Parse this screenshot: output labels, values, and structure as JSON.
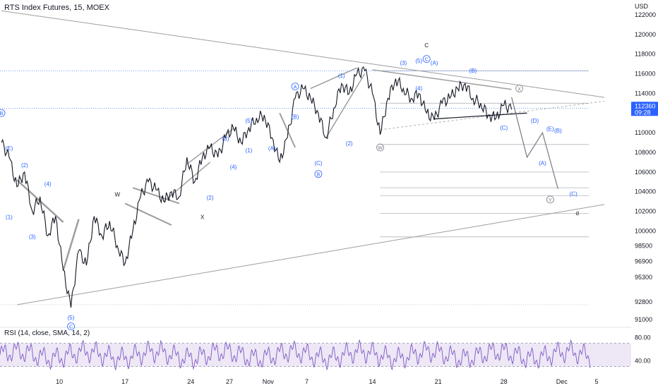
{
  "chart_data": {
    "type": "line",
    "title": "RTS Index Futures, 15, MOEX",
    "currency": "USD",
    "y_ticks": [
      91000,
      92800,
      95300,
      96900,
      98500,
      100000,
      102000,
      104000,
      106000,
      108000,
      110000,
      112000,
      114000,
      116000,
      118000,
      120000,
      122000
    ],
    "y_tick_labels": [
      "91000",
      "92800",
      "95300",
      "96900",
      "98500",
      "100000",
      "102000",
      "104000",
      "106000",
      "108000",
      "110000",
      "112000",
      "114000",
      "116000",
      "118000",
      "120000",
      "122000"
    ],
    "ylim": [
      90200,
      123500
    ],
    "x_tick_labels": [
      "10",
      "17",
      "24",
      "27",
      "Nov",
      "7",
      "14",
      "21",
      "28",
      "Dec",
      "5"
    ],
    "last_price": "112360",
    "countdown": "09:28",
    "price_series": [
      {
        "x": 0,
        "y": 109000
      },
      {
        "x": 1,
        "y": 107500
      },
      {
        "x": 2,
        "y": 104500
      },
      {
        "x": 3,
        "y": 106000
      },
      {
        "x": 4,
        "y": 102000
      },
      {
        "x": 5,
        "y": 103500
      },
      {
        "x": 6,
        "y": 99500
      },
      {
        "x": 7,
        "y": 101500
      },
      {
        "x": 8,
        "y": 96000
      },
      {
        "x": 9,
        "y": 92200
      },
      {
        "x": 10,
        "y": 98000
      },
      {
        "x": 11,
        "y": 96500
      },
      {
        "x": 12,
        "y": 101500
      },
      {
        "x": 13,
        "y": 99500
      },
      {
        "x": 14,
        "y": 101000
      },
      {
        "x": 15,
        "y": 98500
      },
      {
        "x": 16,
        "y": 96700
      },
      {
        "x": 17,
        "y": 100000
      },
      {
        "x": 18,
        "y": 103500
      },
      {
        "x": 19,
        "y": 105000
      },
      {
        "x": 20,
        "y": 104200
      },
      {
        "x": 21,
        "y": 103000
      },
      {
        "x": 22,
        "y": 104000
      },
      {
        "x": 23,
        "y": 103500
      },
      {
        "x": 24,
        "y": 107500
      },
      {
        "x": 25,
        "y": 105000
      },
      {
        "x": 26,
        "y": 107500
      },
      {
        "x": 27,
        "y": 108500
      },
      {
        "x": 28,
        "y": 107500
      },
      {
        "x": 29,
        "y": 109500
      },
      {
        "x": 30,
        "y": 110500
      },
      {
        "x": 31,
        "y": 109000
      },
      {
        "x": 32,
        "y": 110500
      },
      {
        "x": 33,
        "y": 111500
      },
      {
        "x": 34,
        "y": 111800
      },
      {
        "x": 35,
        "y": 109500
      },
      {
        "x": 36,
        "y": 107000
      },
      {
        "x": 37,
        "y": 109500
      },
      {
        "x": 38,
        "y": 113500
      },
      {
        "x": 39,
        "y": 114500
      },
      {
        "x": 40,
        "y": 113500
      },
      {
        "x": 41,
        "y": 112000
      },
      {
        "x": 42,
        "y": 109500
      },
      {
        "x": 43,
        "y": 112500
      },
      {
        "x": 44,
        "y": 115000
      },
      {
        "x": 45,
        "y": 114000
      },
      {
        "x": 46,
        "y": 116000
      },
      {
        "x": 47,
        "y": 116300
      },
      {
        "x": 48,
        "y": 114000
      },
      {
        "x": 49,
        "y": 109800
      },
      {
        "x": 50,
        "y": 113500
      },
      {
        "x": 51,
        "y": 115500
      },
      {
        "x": 52,
        "y": 114500
      },
      {
        "x": 53,
        "y": 113500
      },
      {
        "x": 54,
        "y": 114000
      },
      {
        "x": 55,
        "y": 112000
      },
      {
        "x": 56,
        "y": 111300
      },
      {
        "x": 57,
        "y": 113000
      },
      {
        "x": 58,
        "y": 113500
      },
      {
        "x": 59,
        "y": 114500
      },
      {
        "x": 60,
        "y": 115000
      },
      {
        "x": 61,
        "y": 113500
      },
      {
        "x": 62,
        "y": 113000
      },
      {
        "x": 63,
        "y": 111800
      },
      {
        "x": 64,
        "y": 111500
      },
      {
        "x": 65,
        "y": 112800
      },
      {
        "x": 66,
        "y": 112360
      }
    ],
    "projection_path": [
      {
        "x": 66,
        "y": 113600
      },
      {
        "x": 68,
        "y": 107500
      },
      {
        "x": 70,
        "y": 110000
      },
      {
        "x": 72,
        "y": 104300
      }
    ],
    "wave_labels": [
      "(E)",
      "(2)",
      "(4)",
      "(1)",
      "(3)",
      "(5)",
      "W",
      "X",
      "(1)",
      "(2)",
      "(3)",
      "(4)",
      "(5)",
      "(A)",
      "(B)",
      "(C)",
      "(1)",
      "(2)",
      "(3)",
      "(4)",
      "(5)",
      "C",
      "(A)",
      "(B)",
      "(C)",
      "(D)",
      "(E)",
      "(A)",
      "(B)",
      "(C)",
      "d"
    ],
    "wave_circle_labels": [
      "B",
      "C",
      "A",
      "B",
      "C",
      "W",
      "X",
      "Y"
    ],
    "rsi": {
      "label": "RSI (14, close, SMA, 14, 2)",
      "ticks": [
        "80.00",
        "40.00"
      ],
      "upper": 70,
      "lower": 30
    },
    "grid": false,
    "legend": "none"
  },
  "colors": {
    "price": "#131722",
    "wave_label": "#2962ff",
    "wave_circle": "#2962ff",
    "trend": "#9e9e9e",
    "rsi_line": "#7e57c2",
    "rsi_band": "#ede7f6",
    "last_price_bg": "#2962ff"
  }
}
